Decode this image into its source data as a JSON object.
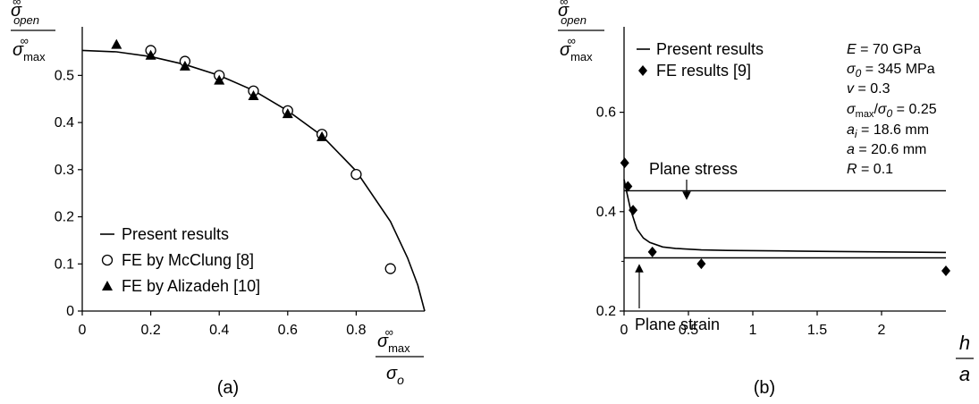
{
  "chart_data": [
    {
      "type": "scatter",
      "panel_label": "(a)",
      "ylabel": {
        "num_base": "σ",
        "num_sup": "∞",
        "num_sub": "open",
        "den_base": "σ",
        "den_sup": "∞",
        "den_sub": "max"
      },
      "xlabel": {
        "num_base": "σ",
        "num_sup": "∞",
        "num_sub": "max",
        "den_base": "σ",
        "den_sub": "o"
      },
      "xlim": [
        0,
        1
      ],
      "ylim": [
        0,
        0.55
      ],
      "x_ticks": [
        "0",
        "0.2",
        "0.4",
        "0.6",
        "0.8"
      ],
      "y_ticks": [
        "0",
        "0.1",
        "0.2",
        "0.3",
        "0.4",
        "0.5"
      ],
      "legend": [
        "Present results",
        "FE by McClung [8]",
        "FE by Alizadeh [10]"
      ],
      "legend_position": "bottom-left",
      "series": [
        {
          "name": "Present results",
          "style": "line",
          "x": [
            0,
            0.1,
            0.2,
            0.3,
            0.4,
            0.5,
            0.6,
            0.7,
            0.8,
            0.9,
            0.95,
            0.98,
            1.0
          ],
          "y": [
            0.553,
            0.55,
            0.54,
            0.523,
            0.5,
            0.468,
            0.425,
            0.372,
            0.297,
            0.19,
            0.113,
            0.055,
            0
          ]
        },
        {
          "name": "FE by McClung [8]",
          "style": "open-circle",
          "x": [
            0.2,
            0.3,
            0.4,
            0.5,
            0.6,
            0.7,
            0.8,
            0.9
          ],
          "y": [
            0.553,
            0.53,
            0.5,
            0.467,
            0.425,
            0.375,
            0.29,
            0.09
          ]
        },
        {
          "name": "FE by Alizadeh [10]",
          "style": "filled-triangle",
          "x": [
            0.1,
            0.2,
            0.3,
            0.4,
            0.5,
            0.6,
            0.7
          ],
          "y": [
            0.566,
            0.543,
            0.52,
            0.49,
            0.457,
            0.419,
            0.37
          ]
        }
      ]
    },
    {
      "type": "scatter",
      "panel_label": "(b)",
      "ylabel": {
        "num_base": "σ",
        "num_sup": "∞",
        "num_sub": "open",
        "den_base": "σ",
        "den_sup": "∞",
        "den_sub": "max"
      },
      "xlabel": {
        "num": "h",
        "den": "a"
      },
      "xlim": [
        0,
        2.5
      ],
      "ylim": [
        0.2,
        0.7
      ],
      "x_ticks": [
        "0",
        "0.5",
        "1",
        "1.5",
        "2"
      ],
      "y_ticks": [
        "0.2",
        "0.4",
        "0.6"
      ],
      "legend": [
        "Present results",
        "FE results [9]"
      ],
      "legend_position": "top-left",
      "annotations": [
        "Plane stress",
        "Plane strain"
      ],
      "parameters": [
        {
          "sym": "E",
          "rest": " = 70 GPa"
        },
        {
          "sym": "σ",
          "sub": "0",
          "rest": " = 345 MPa"
        },
        {
          "sym": "v",
          "rest": " = 0.3"
        },
        {
          "sym": "σ",
          "sub": "max",
          "mid": "/",
          "sym2": "σ",
          "sub2": "0",
          "rest": " = 0.25"
        },
        {
          "sym": "a",
          "sub": "i",
          "rest": " = 18.6 mm"
        },
        {
          "sym": "a",
          "rest": " = 20.6 mm"
        },
        {
          "sym": "R",
          "rest": " = 0.1"
        }
      ],
      "plane_stress": 0.442,
      "plane_strain": 0.307,
      "series": [
        {
          "name": "Present results",
          "style": "line",
          "x": [
            0,
            0.02,
            0.05,
            0.1,
            0.15,
            0.2,
            0.3,
            0.4,
            0.6,
            0.8,
            1.2,
            1.6,
            2.0,
            2.5
          ],
          "y": [
            0.465,
            0.44,
            0.405,
            0.365,
            0.347,
            0.338,
            0.329,
            0.326,
            0.323,
            0.322,
            0.321,
            0.32,
            0.319,
            0.318
          ]
        },
        {
          "name": "FE results [9]",
          "style": "filled-diamond",
          "x": [
            0.005,
            0.03,
            0.07,
            0.22,
            0.6,
            2.5
          ],
          "y": [
            0.498,
            0.451,
            0.403,
            0.319,
            0.295,
            0.281
          ]
        }
      ]
    }
  ]
}
